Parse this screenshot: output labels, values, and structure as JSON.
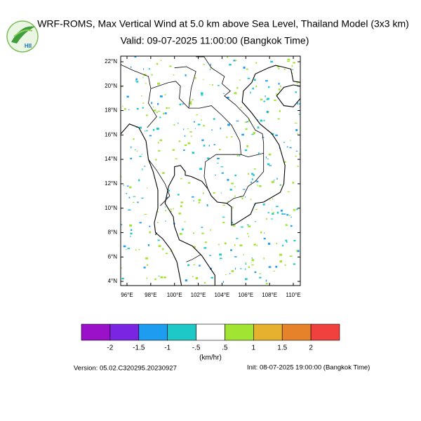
{
  "header": {
    "title": "WRF-ROMS, Max Vertical Wind at 5.0 km above Sea Level, Thailand Model (3x3 km)",
    "valid": "Valid: 09-07-2025 11:00:00 (Bangkok Time)",
    "logo": "HII"
  },
  "map": {
    "lat_labels": [
      "22°N",
      "20°N",
      "18°N",
      "16°N",
      "14°N",
      "12°N",
      "10°N",
      "8°N",
      "6°N",
      "4°N"
    ],
    "lon_labels": [
      "96°E",
      "98°E",
      "100°E",
      "102°E",
      "104°E",
      "106°E",
      "108°E",
      "110°E"
    ]
  },
  "colorbar": {
    "colors": [
      "#9b11c9",
      "#7a25e2",
      "#1e9cf0",
      "#1ec8c6",
      "#ffffff",
      "#a2e432",
      "#e5b12e",
      "#e5822a",
      "#f0413f"
    ],
    "labels": [
      "-2",
      "-1.5",
      "-1",
      "-.5",
      ".5",
      "1",
      "1.5",
      "2"
    ],
    "unit": "(km/hr)"
  },
  "footer": {
    "version": "Version: 05.02.C320295.20230927",
    "init": "Init: 08-07-2025 19:00:00 (Bangkok Time)"
  }
}
